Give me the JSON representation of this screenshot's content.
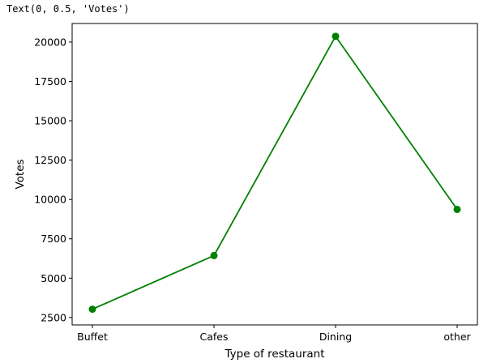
{
  "cell_output": {
    "text": "Text(0, 0.5, 'Votes')"
  },
  "chart_data": {
    "type": "line",
    "categories": [
      "Buffet",
      "Cafes",
      "Dining",
      "other"
    ],
    "series": [
      {
        "values": [
          3028,
          6434,
          20363,
          9367
        ],
        "color": "#008000",
        "marker": "circle"
      }
    ],
    "xlabel": "Type of restaurant",
    "ylabel": "Votes",
    "ylim": [
      2028,
      21180
    ],
    "yticks": [
      2500,
      5000,
      7500,
      10000,
      12500,
      15000,
      17500,
      20000
    ],
    "ytick_labels": [
      "2500",
      "5000",
      "7500",
      "10000",
      "12500",
      "15000",
      "17500",
      "20000"
    ],
    "grid": false,
    "legend": false
  }
}
